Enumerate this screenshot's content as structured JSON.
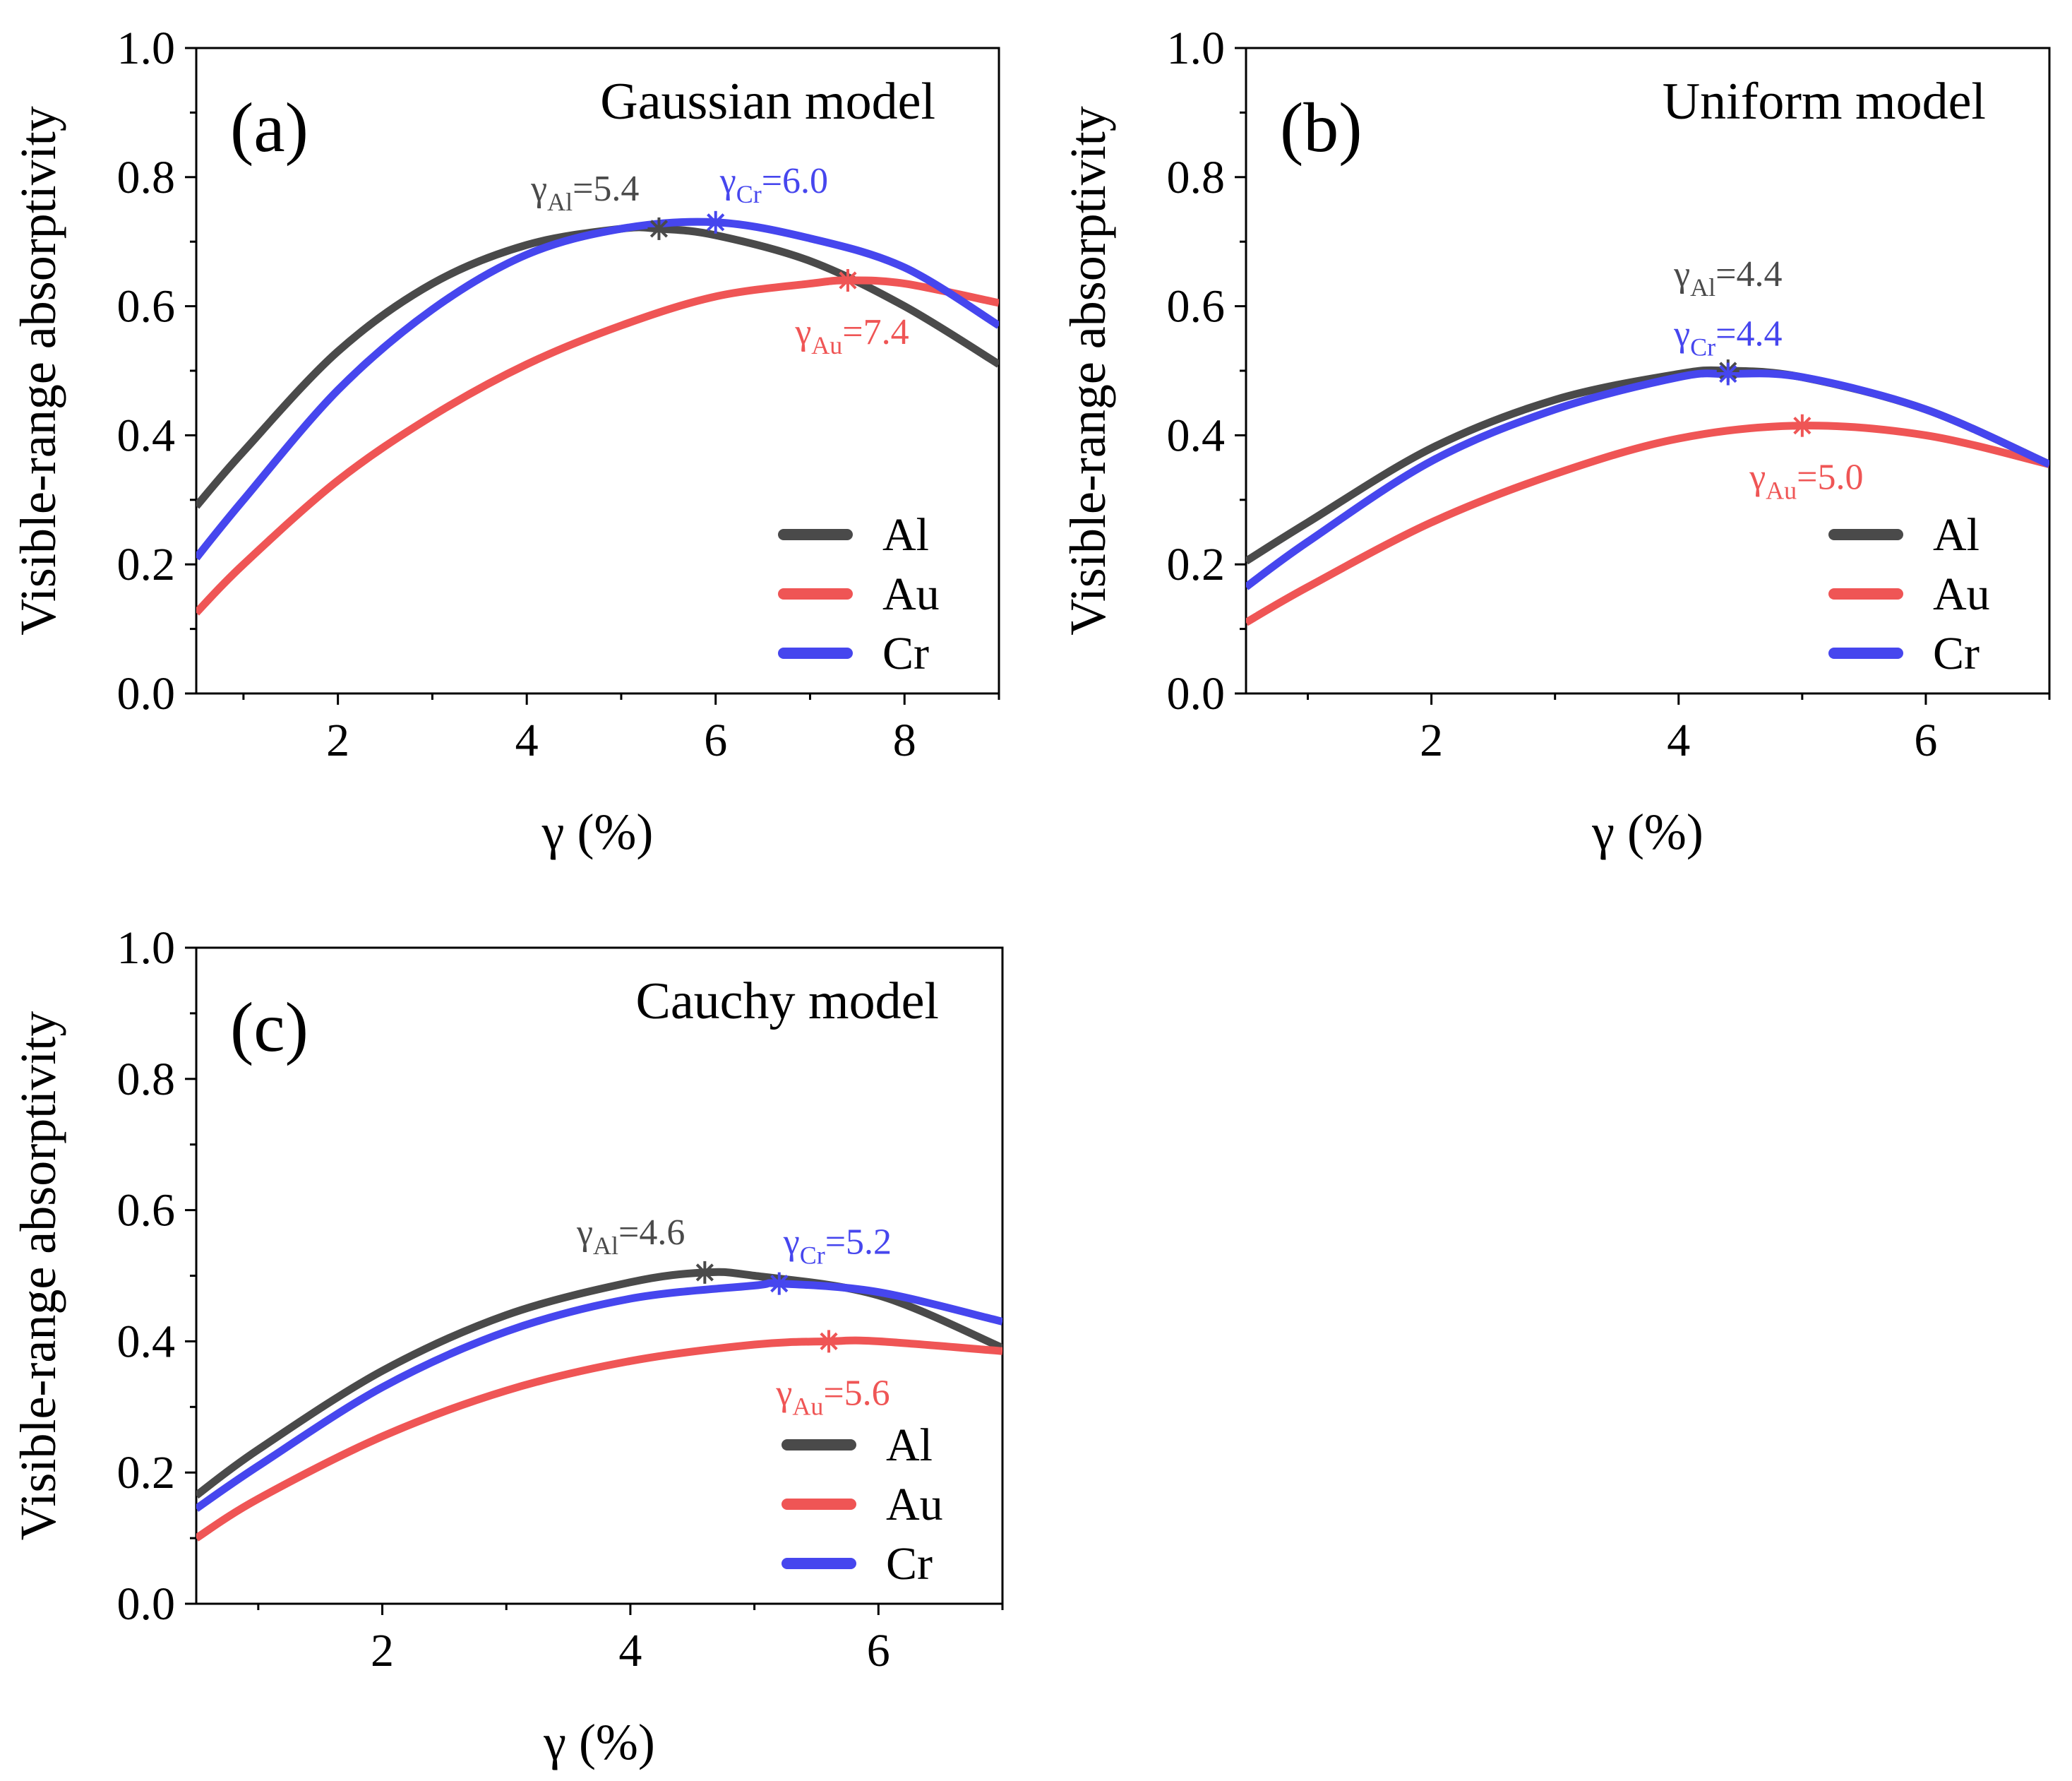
{
  "figure": {
    "series_colors": {
      "Al": "#4a4a4a",
      "Au": "#ef5555",
      "Cr": "#4646ee"
    }
  },
  "chart_data": [
    {
      "type": "line",
      "panel_label": "(a)",
      "title": "Gaussian model",
      "xlabel": "γ (%)",
      "ylabel": "Visible-range absorptivity",
      "xlim": [
        0.5,
        9
      ],
      "ylim": [
        0,
        1
      ],
      "xticks": [
        2,
        4,
        6,
        8
      ],
      "xtick_labels": [
        "2",
        "4",
        "6",
        "8"
      ],
      "yticks": [
        0,
        0.2,
        0.4,
        0.6,
        0.8,
        1.0
      ],
      "ytick_labels": [
        "0.0",
        "0.2",
        "0.4",
        "0.6",
        "0.8",
        "1.0"
      ],
      "legend": [
        "Al",
        "Au",
        "Cr"
      ],
      "legend_position": "bottom-right",
      "series": [
        {
          "name": "Al",
          "color": "#4a4a4a",
          "x": [
            0.5,
            1.0,
            2.0,
            3.0,
            4.0,
            5.0,
            5.4,
            6.0,
            7.0,
            8.0,
            9.0
          ],
          "y": [
            0.29,
            0.375,
            0.53,
            0.635,
            0.695,
            0.72,
            0.72,
            0.71,
            0.67,
            0.6,
            0.51
          ]
        },
        {
          "name": "Au",
          "color": "#ef5555",
          "x": [
            0.5,
            1.0,
            2.0,
            3.0,
            4.0,
            5.0,
            6.0,
            7.0,
            7.4,
            8.0,
            9.0
          ],
          "y": [
            0.125,
            0.2,
            0.33,
            0.43,
            0.51,
            0.57,
            0.615,
            0.635,
            0.64,
            0.635,
            0.605
          ]
        },
        {
          "name": "Cr",
          "color": "#4646ee",
          "x": [
            0.5,
            1.0,
            2.0,
            3.0,
            4.0,
            5.0,
            6.0,
            7.0,
            8.0,
            9.0
          ],
          "y": [
            0.21,
            0.3,
            0.47,
            0.595,
            0.68,
            0.72,
            0.73,
            0.705,
            0.66,
            0.57
          ]
        }
      ],
      "annotations": [
        {
          "symbol": "γ",
          "sub": "Al",
          "text": "=5.4",
          "color": "#4a4a4a",
          "x": 5.4,
          "y": 0.72,
          "place": "above-left"
        },
        {
          "symbol": "γ",
          "sub": "Cr",
          "text": "=6.0",
          "color": "#4646ee",
          "x": 6.0,
          "y": 0.73,
          "place": "above-right"
        },
        {
          "symbol": "γ",
          "sub": "Au",
          "text": "=7.4",
          "color": "#ef5555",
          "x": 7.4,
          "y": 0.64,
          "place": "below"
        }
      ]
    },
    {
      "type": "line",
      "panel_label": "(b)",
      "title": "Uniform model",
      "xlabel": "γ (%)",
      "ylabel": "Visible-range absorptivity",
      "xlim": [
        0.5,
        7
      ],
      "ylim": [
        0,
        1
      ],
      "xticks": [
        2,
        4,
        6
      ],
      "xtick_labels": [
        "2",
        "4",
        "6"
      ],
      "yticks": [
        0,
        0.2,
        0.4,
        0.6,
        0.8,
        1.0
      ],
      "ytick_labels": [
        "0.0",
        "0.2",
        "0.4",
        "0.6",
        "0.8",
        "1.0"
      ],
      "legend": [
        "Al",
        "Au",
        "Cr"
      ],
      "legend_position": "bottom-right",
      "series": [
        {
          "name": "Al",
          "color": "#4a4a4a",
          "x": [
            0.5,
            1.0,
            2.0,
            3.0,
            4.0,
            4.4,
            5.0,
            6.0,
            7.0
          ],
          "y": [
            0.205,
            0.265,
            0.38,
            0.455,
            0.495,
            0.5,
            0.49,
            0.44,
            0.355
          ]
        },
        {
          "name": "Au",
          "color": "#ef5555",
          "x": [
            0.5,
            1.0,
            2.0,
            3.0,
            4.0,
            5.0,
            6.0,
            7.0
          ],
          "y": [
            0.11,
            0.165,
            0.265,
            0.34,
            0.395,
            0.415,
            0.4,
            0.355
          ]
        },
        {
          "name": "Cr",
          "color": "#4646ee",
          "x": [
            0.5,
            1.0,
            2.0,
            3.0,
            4.0,
            4.4,
            5.0,
            6.0,
            7.0
          ],
          "y": [
            0.165,
            0.235,
            0.36,
            0.44,
            0.49,
            0.495,
            0.49,
            0.44,
            0.355
          ]
        }
      ],
      "annotations": [
        {
          "symbol": "γ",
          "sub": "Al",
          "text": "=4.4",
          "color": "#4a4a4a",
          "x": 4.4,
          "y": 0.5,
          "place": "above-high"
        },
        {
          "symbol": "γ",
          "sub": "Cr",
          "text": "=4.4",
          "color": "#4646ee",
          "x": 4.4,
          "y": 0.495,
          "place": "above"
        },
        {
          "symbol": "γ",
          "sub": "Au",
          "text": "=5.0",
          "color": "#ef5555",
          "x": 5.0,
          "y": 0.415,
          "place": "below"
        }
      ]
    },
    {
      "type": "line",
      "panel_label": "(c)",
      "title": "Cauchy model",
      "xlabel": "γ (%)",
      "ylabel": "Visible-range absorptivity",
      "xlim": [
        0.5,
        7
      ],
      "ylim": [
        0,
        1
      ],
      "xticks": [
        2,
        4,
        6
      ],
      "xtick_labels": [
        "2",
        "4",
        "6"
      ],
      "yticks": [
        0,
        0.2,
        0.4,
        0.6,
        0.8,
        1.0
      ],
      "ytick_labels": [
        "0.0",
        "0.2",
        "0.4",
        "0.6",
        "0.8",
        "1.0"
      ],
      "legend": [
        "Al",
        "Au",
        "Cr"
      ],
      "legend_position": "bottom-right",
      "series": [
        {
          "name": "Al",
          "color": "#4a4a4a",
          "x": [
            0.5,
            1.0,
            2.0,
            3.0,
            4.0,
            4.6,
            5.0,
            6.0,
            7.0
          ],
          "y": [
            0.165,
            0.235,
            0.355,
            0.44,
            0.49,
            0.505,
            0.5,
            0.47,
            0.39
          ]
        },
        {
          "name": "Au",
          "color": "#ef5555",
          "x": [
            0.5,
            1.0,
            2.0,
            3.0,
            4.0,
            5.0,
            5.6,
            6.0,
            7.0
          ],
          "y": [
            0.1,
            0.16,
            0.255,
            0.325,
            0.37,
            0.395,
            0.4,
            0.4,
            0.385
          ]
        },
        {
          "name": "Cr",
          "color": "#4646ee",
          "x": [
            0.5,
            1.0,
            2.0,
            3.0,
            4.0,
            5.0,
            5.2,
            6.0,
            7.0
          ],
          "y": [
            0.145,
            0.21,
            0.33,
            0.415,
            0.465,
            0.485,
            0.488,
            0.475,
            0.43
          ]
        }
      ],
      "annotations": [
        {
          "symbol": "γ",
          "sub": "Al",
          "text": "=4.6",
          "color": "#4a4a4a",
          "x": 4.6,
          "y": 0.505,
          "place": "above-left"
        },
        {
          "symbol": "γ",
          "sub": "Cr",
          "text": "=5.2",
          "color": "#4646ee",
          "x": 5.2,
          "y": 0.488,
          "place": "above-right"
        },
        {
          "symbol": "γ",
          "sub": "Au",
          "text": "=5.6",
          "color": "#ef5555",
          "x": 5.6,
          "y": 0.4,
          "place": "below"
        }
      ]
    }
  ]
}
